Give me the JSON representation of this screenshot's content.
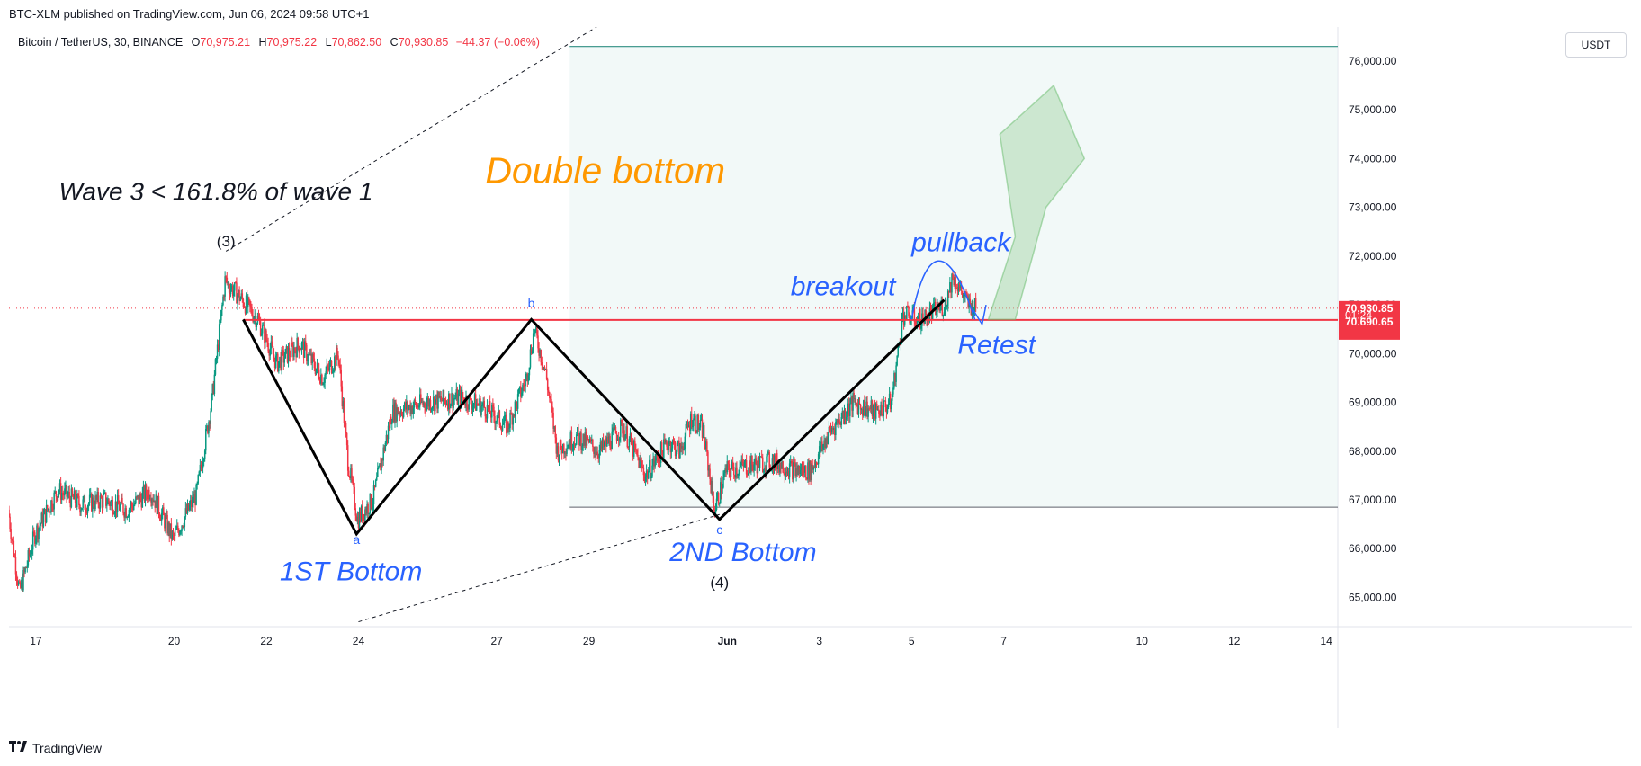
{
  "header": {
    "caption": "BTC-XLM published on TradingView.com, Jun 06, 2024 09:58 UTC+1"
  },
  "legend": {
    "symbol": "Bitcoin / TetherUS, 30, BINANCE",
    "open_key": "O",
    "open": "70,975.21",
    "high_key": "H",
    "high": "70,975.22",
    "low_key": "L",
    "low": "70,862.50",
    "close_key": "C",
    "close": "70,930.85",
    "change": "−44.37 (−0.06%)"
  },
  "currency": "USDT",
  "footer": {
    "brand": "TradingView",
    "logo_icon": "tradingview-logo-icon"
  },
  "colors": {
    "up": "#089981",
    "down": "#f23645",
    "neckline": "#f23645",
    "pattern": "#000000",
    "blue_text": "#2962ff",
    "orange_text": "#ff9800",
    "target_zone": "#e8f4f2",
    "target_line": "#2f8f83",
    "arrow": "#a5d6a7"
  },
  "chart_data": {
    "type": "candlestick",
    "title": "",
    "ylim": [
      64400,
      76700
    ],
    "y_ticks": [
      65000,
      66000,
      67000,
      68000,
      69000,
      70000,
      71000,
      72000,
      73000,
      74000,
      75000,
      76000
    ],
    "y_tick_labels": [
      "65,000.00",
      "66,000.00",
      "67,000.00",
      "68,000.00",
      "69,000.00",
      "70,000.00",
      "71,000.00",
      "72,000.00",
      "73,000.00",
      "74,000.00",
      "75,000.00",
      "76,000.00"
    ],
    "x_range": [
      "2024-05-16T10:00",
      "2024-06-14T06:00"
    ],
    "x_ticks": [
      {
        "t": "2024-05-17",
        "label": "17"
      },
      {
        "t": "2024-05-20",
        "label": "20"
      },
      {
        "t": "2024-05-22",
        "label": "22"
      },
      {
        "t": "2024-05-24",
        "label": "24"
      },
      {
        "t": "2024-05-27",
        "label": "27"
      },
      {
        "t": "2024-05-29",
        "label": "29"
      },
      {
        "t": "2024-06-01",
        "label": "Jun"
      },
      {
        "t": "2024-06-03",
        "label": "3"
      },
      {
        "t": "2024-06-05",
        "label": "5"
      },
      {
        "t": "2024-06-07",
        "label": "7"
      },
      {
        "t": "2024-06-10",
        "label": "10"
      },
      {
        "t": "2024-06-12",
        "label": "12"
      },
      {
        "t": "2024-06-14",
        "label": "14"
      }
    ],
    "price_path": [
      [
        "2024-05-16T10:00",
        66800
      ],
      [
        "2024-05-16T16:00",
        65100
      ],
      [
        "2024-05-17T00:00",
        66300
      ],
      [
        "2024-05-17T12:00",
        67200
      ],
      [
        "2024-05-18T00:00",
        66900
      ],
      [
        "2024-05-18T12:00",
        67000
      ],
      [
        "2024-05-19T00:00",
        66800
      ],
      [
        "2024-05-19T12:00",
        67200
      ],
      [
        "2024-05-20T00:00",
        66200
      ],
      [
        "2024-05-20T12:00",
        67100
      ],
      [
        "2024-05-20T20:00",
        69000
      ],
      [
        "2024-05-21T03:00",
        71500
      ],
      [
        "2024-05-21T12:00",
        71100
      ],
      [
        "2024-05-21T20:00",
        70700
      ],
      [
        "2024-05-22T06:00",
        69800
      ],
      [
        "2024-05-22T18:00",
        70200
      ],
      [
        "2024-05-23T06:00",
        69500
      ],
      [
        "2024-05-23T14:00",
        70000
      ],
      [
        "2024-05-23T19:00",
        67800
      ],
      [
        "2024-05-24T00:00",
        66600
      ],
      [
        "2024-05-24T08:00",
        67000
      ],
      [
        "2024-05-24T18:00",
        68800
      ],
      [
        "2024-05-25T12:00",
        69000
      ],
      [
        "2024-05-26T06:00",
        69100
      ],
      [
        "2024-05-26T18:00",
        68900
      ],
      [
        "2024-05-27T06:00",
        68500
      ],
      [
        "2024-05-27T16:00",
        69500
      ],
      [
        "2024-05-27T20:00",
        70500
      ],
      [
        "2024-05-28T02:00",
        69600
      ],
      [
        "2024-05-28T08:00",
        68000
      ],
      [
        "2024-05-28T18:00",
        68300
      ],
      [
        "2024-05-29T06:00",
        68000
      ],
      [
        "2024-05-29T18:00",
        68500
      ],
      [
        "2024-05-30T06:00",
        67500
      ],
      [
        "2024-05-30T18:00",
        68200
      ],
      [
        "2024-05-31T00:00",
        68000
      ],
      [
        "2024-05-31T06:00",
        68700
      ],
      [
        "2024-05-31T12:00",
        68400
      ],
      [
        "2024-05-31T18:00",
        66800
      ],
      [
        "2024-06-01T00:00",
        67600
      ],
      [
        "2024-06-01T12:00",
        67700
      ],
      [
        "2024-06-02T00:00",
        67800
      ],
      [
        "2024-06-02T12:00",
        67600
      ],
      [
        "2024-06-02T20:00",
        67600
      ],
      [
        "2024-06-03T06:00",
        68400
      ],
      [
        "2024-06-03T18:00",
        69000
      ],
      [
        "2024-06-04T06:00",
        68800
      ],
      [
        "2024-06-04T14:00",
        69000
      ],
      [
        "2024-06-04T20:00",
        70800
      ],
      [
        "2024-06-05T06:00",
        70700
      ],
      [
        "2024-06-05T18:00",
        71000
      ],
      [
        "2024-06-05T22:00",
        71600
      ],
      [
        "2024-06-06T06:00",
        71000
      ],
      [
        "2024-06-06T09:30",
        70930
      ]
    ],
    "horizontal_lines": [
      {
        "name": "neckline",
        "price": 70690.65,
        "from": "2024-05-21T12:00",
        "to": "2024-06-14T06:00"
      },
      {
        "name": "target",
        "price": 76300,
        "from": "2024-05-28T14:00",
        "to": "2024-06-14T06:00"
      },
      {
        "name": "base",
        "price": 66850,
        "from": "2024-05-28T14:00",
        "to": "2024-06-14T06:00"
      },
      {
        "name": "current",
        "price": 70930.85,
        "from": "2024-05-16T10:00",
        "to": "2024-06-14T06:00"
      }
    ],
    "pattern_lines": [
      [
        "2024-05-21T12:00",
        70700
      ],
      [
        "2024-05-23T23:00",
        66300
      ],
      [
        "2024-05-27T18:00",
        70700
      ],
      [
        "2024-05-31T20:00",
        66600
      ],
      [
        "2024-06-05T17:00",
        71100
      ]
    ],
    "channel_upper": [
      [
        "2024-05-21T03:00",
        72100
      ],
      [
        "2024-05-29T04:00",
        76700
      ]
    ],
    "channel_lower": [
      [
        "2024-05-24T00:00",
        64500
      ],
      [
        "2024-05-31T20:00",
        66700
      ]
    ],
    "annotations": [
      {
        "text": "Wave 3 < 161.8% of wave 1",
        "t": "2024-05-17T12:00",
        "price": 73150,
        "style": "wave"
      },
      {
        "text": "(3)",
        "t": "2024-05-21T03:00",
        "price": 72200,
        "style": "wave-label"
      },
      {
        "text": "(4)",
        "t": "2024-05-31T20:00",
        "price": 65200,
        "style": "wave-label"
      },
      {
        "text": "Double bottom",
        "t": "2024-05-26T18:00",
        "price": 73500,
        "style": "title"
      },
      {
        "text": "a",
        "t": "2024-05-23T23:00",
        "price": 66100,
        "style": "point"
      },
      {
        "text": "b",
        "t": "2024-05-27T18:00",
        "price": 70950,
        "style": "point"
      },
      {
        "text": "c",
        "t": "2024-05-31T20:00",
        "price": 66300,
        "style": "point"
      },
      {
        "text": "1ST Bottom",
        "t": "2024-05-22T07:00",
        "price": 65350,
        "style": "blue"
      },
      {
        "text": "2ND Bottom",
        "t": "2024-05-30T18:00",
        "price": 65750,
        "style": "blue"
      },
      {
        "text": "breakout",
        "t": "2024-06-02T09:00",
        "price": 71200,
        "style": "blue"
      },
      {
        "text": "pullback",
        "t": "2024-06-05T00:00",
        "price": 72100,
        "style": "blue"
      },
      {
        "text": "Retest",
        "t": "2024-06-06T00:00",
        "price": 70000,
        "style": "blue"
      }
    ],
    "price_labels": [
      {
        "text": "70,930.85",
        "price": 70930.85
      },
      {
        "text": "01:24",
        "price": 70790
      },
      {
        "text": "70,690.65",
        "price": 70650
      }
    ],
    "grid": false,
    "legend": "top-left"
  }
}
